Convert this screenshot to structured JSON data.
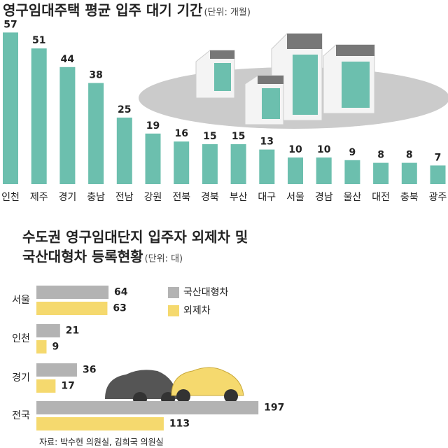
{
  "chart_data": [
    {
      "type": "bar",
      "title": "영구임대주택 평균 입주 대기 기간",
      "unit": "(단위: 개월)",
      "categories": [
        "인천",
        "제주",
        "경기",
        "충남",
        "전남",
        "강원",
        "전북",
        "경북",
        "부산",
        "대구",
        "서울",
        "경남",
        "울산",
        "대전",
        "충북",
        "광주"
      ],
      "values": [
        57,
        51,
        44,
        38,
        25,
        19,
        16,
        15,
        15,
        13,
        10,
        10,
        9,
        8,
        8,
        7
      ],
      "color": "#6cbfae"
    },
    {
      "type": "hbar",
      "title": [
        "수도권 영구임대단지 입주자 외제차 및",
        "국산대형차  등록현황"
      ],
      "unit": "(단위: 대)",
      "categories": [
        "서울",
        "인천",
        "경기",
        "전국"
      ],
      "series": [
        {
          "name": "국산대형차",
          "color": "#b3b3b3",
          "values": [
            64,
            21,
            36,
            197
          ]
        },
        {
          "name": "외제차",
          "color": "#f5d96e",
          "values": [
            63,
            9,
            17,
            113
          ]
        }
      ],
      "source": "자료: 박수현 의원실, 김희국 의원실"
    }
  ]
}
